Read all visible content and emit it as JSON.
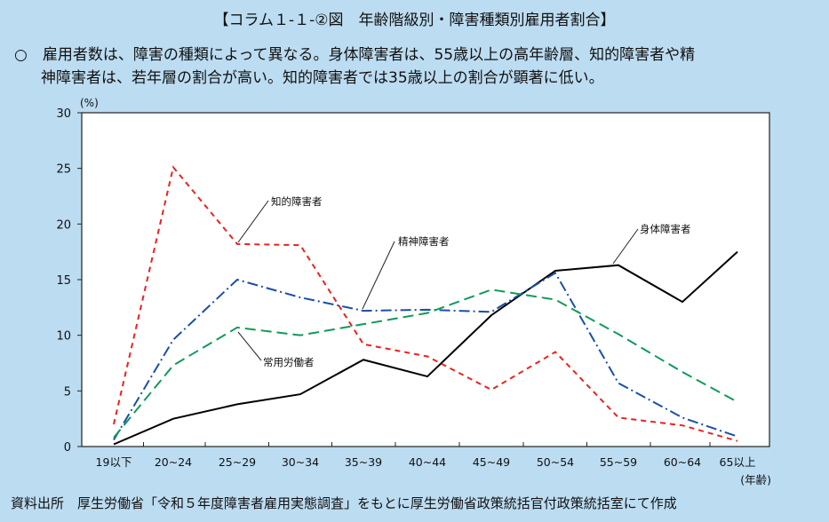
{
  "header": {
    "title": "【コラム１-１-②図　年齢階級別・障害種類別雇用者割合】",
    "desc_line1": "○　雇用者数は、障害の種類によって異なる。身体障害者は、55歳以上の高年齢層、知的障害者や精",
    "desc_line2": "神障害者は、若年層の割合が高い。知的障害者では35歳以上の割合が顕著に低い。"
  },
  "footer": {
    "source": "資料出所　厚生労働省「令和５年度障害者雇用実態調査」をもとに厚生労働省政策統括官付政策統括室にて作成"
  },
  "chart_data": {
    "type": "line",
    "title": "年齢階級別・障害種類別雇用者割合",
    "ylabel": "(%)",
    "xlabel": "(年齢)",
    "ylim": [
      0,
      30
    ],
    "yticks": [
      0,
      5,
      10,
      15,
      20,
      25,
      30
    ],
    "grid": false,
    "categories": [
      "19以下",
      "20~24",
      "25~29",
      "30~34",
      "35~39",
      "40~44",
      "45~49",
      "50~54",
      "55~59",
      "60~64",
      "65以上"
    ],
    "series": [
      {
        "name": "身体障害者",
        "color": "#000000",
        "dash": "",
        "values": [
          0.2,
          2.5,
          3.8,
          4.7,
          7.8,
          6.3,
          11.8,
          15.8,
          16.3,
          13.0,
          17.5
        ]
      },
      {
        "name": "知的障害者",
        "color": "#e8231f",
        "dash": "6,5",
        "values": [
          2.0,
          25.1,
          18.2,
          18.1,
          9.2,
          8.1,
          5.1,
          8.5,
          2.6,
          1.9,
          0.5
        ]
      },
      {
        "name": "精神障害者",
        "color": "#1a4fa8",
        "dash": "12,4,2,4",
        "values": [
          0.6,
          9.6,
          15.0,
          13.4,
          12.2,
          12.3,
          12.1,
          15.6,
          5.7,
          2.6,
          0.9
        ]
      },
      {
        "name": "常用労働者",
        "color": "#119a5a",
        "dash": "12,6",
        "values": [
          0.8,
          7.3,
          10.7,
          10.0,
          11.0,
          12.0,
          14.1,
          13.2,
          10.1,
          6.7,
          4.0
        ]
      }
    ]
  }
}
